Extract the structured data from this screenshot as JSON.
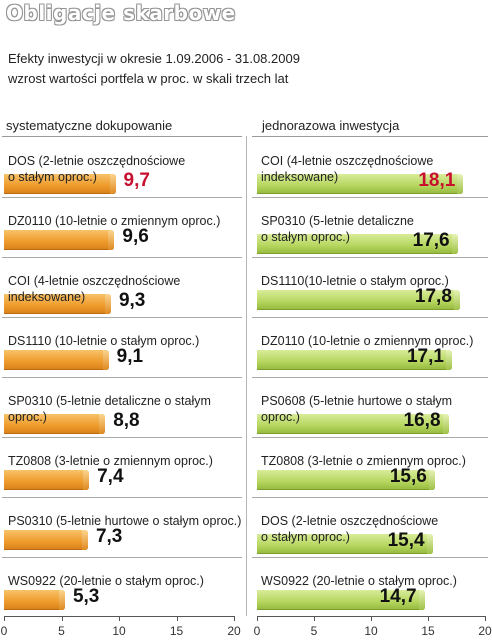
{
  "header": {
    "title": "Obligacje skarbowe",
    "subtitle_line1": "Efekty inwestycji w okresie 1.09.2006 - 31.08.2009",
    "subtitle_line2": "wzrost wartości portfela w proc. w skali trzech lat"
  },
  "colors": {
    "left_bars": "#ee9a2a",
    "right_bars": "#b4d55d",
    "highlight": "#c8102e"
  },
  "chart_data": [
    {
      "type": "bar",
      "orientation": "horizontal",
      "title": "systematyczne dokupowanie",
      "xlim": [
        0,
        20
      ],
      "xticks": [
        0,
        5,
        10,
        15,
        20
      ],
      "categories": [
        "DOS (2-letnie oszczędnościowe\no stałym oproc.)",
        "DZ0110 (10-letnie o zmiennym oproc.)",
        "COI (4-letnie oszczędnościowe\nindeksowane)",
        "DS1110 (10-letnie o stałym oproc.)",
        "SP0310 (5-letnie detaliczne o stałym\noproc.)",
        "TZ0808 (3-letnie o zmiennym oproc.)",
        "PS0310 (5-letnie hurtowe o stałym oproc.)",
        "WS0922 (20-letnie o stałym oproc.)"
      ],
      "values": [
        9.7,
        9.6,
        9.3,
        9.1,
        8.8,
        7.4,
        7.3,
        5.3
      ],
      "value_labels": [
        "9,7",
        "9,6",
        "9,3",
        "9,1",
        "8,8",
        "7,4",
        "7,3",
        "5,3"
      ],
      "highlight_index": 0
    },
    {
      "type": "bar",
      "orientation": "horizontal",
      "title": "jednorazowa inwestycja",
      "xlim": [
        0,
        20
      ],
      "xticks": [
        0,
        5,
        10,
        15,
        20
      ],
      "categories": [
        "COI (4-letnie oszczędnościowe\nindeksowane)",
        "SP0310 (5-letnie detaliczne\no stałym oproc.)",
        "DS1110(10-letnie o stałym oproc.)",
        "DZ0110 (10-letnie o zmiennym oproc.)",
        "PS0608 (5-letnie hurtowe o stałym\noproc.)",
        "TZ0808 (3-letnie o zmiennym oproc.)",
        "DOS (2-letnie oszczędnościowe\no stałym oproc.)",
        "WS0922 (20-letnie o stałym oproc.)"
      ],
      "values": [
        18.1,
        17.6,
        17.8,
        17.1,
        16.8,
        15.6,
        15.4,
        14.7
      ],
      "value_labels": [
        "18,1",
        "17,6",
        "17,8",
        "17,1",
        "16,8",
        "15,6",
        "15,4",
        "14,7"
      ],
      "highlight_index": 0
    }
  ]
}
